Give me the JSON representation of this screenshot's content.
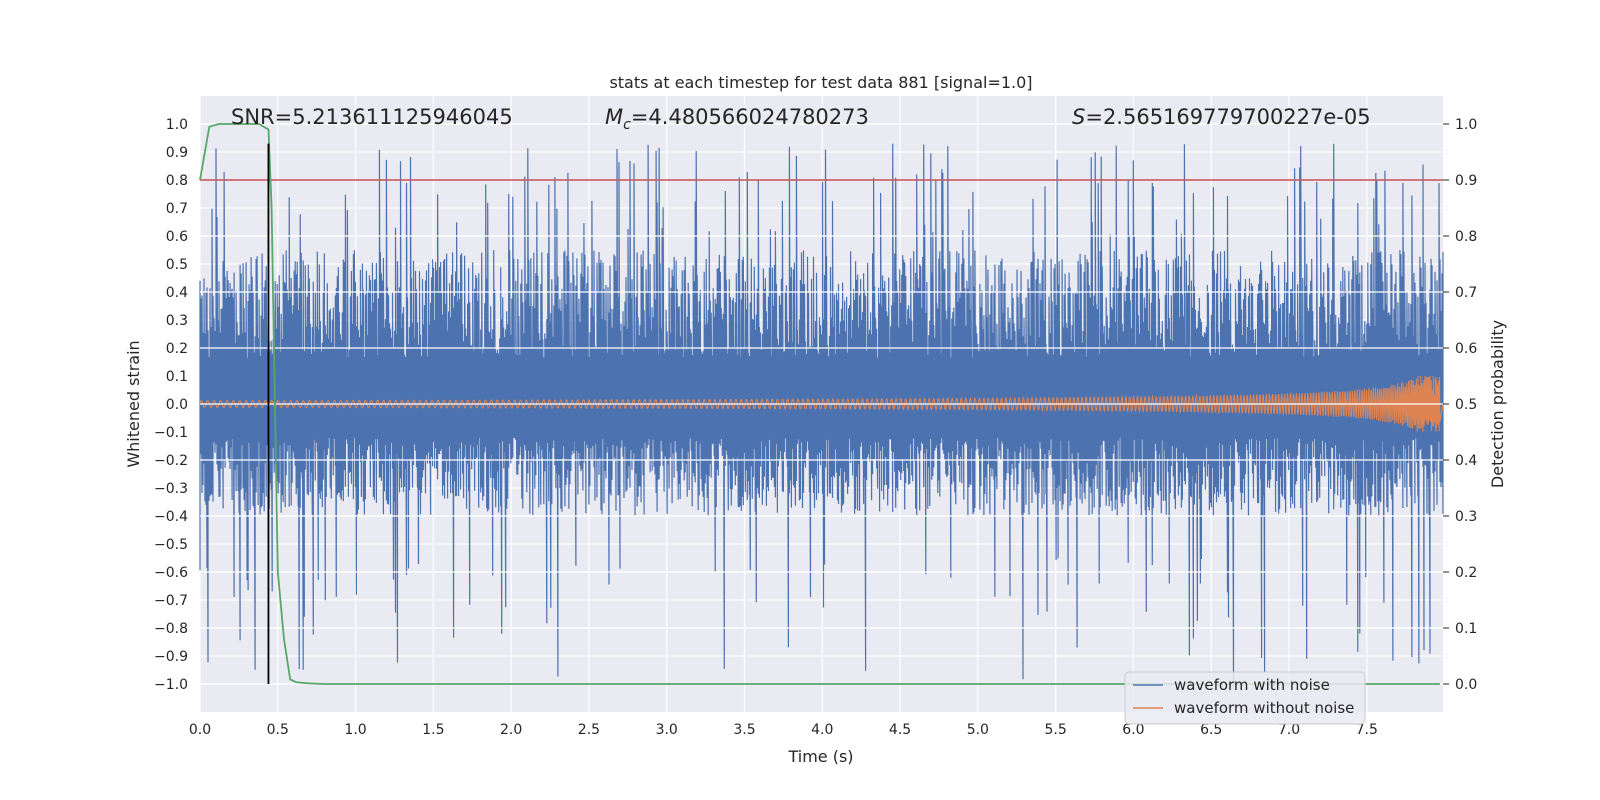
{
  "chart_data": {
    "type": "line",
    "title": "stats at each timestep for test data 881 [signal=1.0]",
    "xlabel": "Time (s)",
    "ylabel": "Whitened strain",
    "y2label": "Detection probability",
    "xlim": [
      0.0,
      7.99
    ],
    "ylim": [
      -1.1,
      1.1
    ],
    "y2lim": [
      -0.05,
      1.05
    ],
    "xticks": [
      "0.0",
      "0.5",
      "1.0",
      "1.5",
      "2.0",
      "2.5",
      "3.0",
      "3.5",
      "4.0",
      "4.5",
      "5.0",
      "5.5",
      "6.0",
      "6.5",
      "7.0",
      "7.5"
    ],
    "xtick_values": [
      0.0,
      0.5,
      1.0,
      1.5,
      2.0,
      2.5,
      3.0,
      3.5,
      4.0,
      4.5,
      5.0,
      5.5,
      6.0,
      6.5,
      7.0,
      7.5
    ],
    "yticks": [
      "1.0",
      "0.9",
      "0.8",
      "0.7",
      "0.6",
      "0.5",
      "0.4",
      "0.3",
      "0.2",
      "0.1",
      "0.0",
      "−0.1",
      "−0.2",
      "−0.3",
      "−0.4",
      "−0.5",
      "−0.6",
      "−0.7",
      "−0.8",
      "−0.9",
      "−1.0"
    ],
    "ytick_values": [
      1.0,
      0.9,
      0.8,
      0.7,
      0.6,
      0.5,
      0.4,
      0.3,
      0.2,
      0.1,
      0.0,
      -0.1,
      -0.2,
      -0.3,
      -0.4,
      -0.5,
      -0.6,
      -0.7,
      -0.8,
      -0.9,
      -1.0
    ],
    "y2ticks": [
      "1.0",
      "0.9",
      "0.8",
      "0.7",
      "0.6",
      "0.5",
      "0.4",
      "0.3",
      "0.2",
      "0.1",
      "0.0"
    ],
    "y2tick_values": [
      1.0,
      0.9,
      0.8,
      0.7,
      0.6,
      0.5,
      0.4,
      0.3,
      0.2,
      0.1,
      0.0
    ],
    "annotations": {
      "snr": "SNR=5.213611125946045",
      "mc_symbol": "M",
      "mc_sub": "c",
      "mc_value": "=4.480566024780273",
      "s_symbol": "S",
      "s_value": "=2.565169779700227e-05"
    },
    "threshold": {
      "y2": 0.9,
      "color": "#c44e52"
    },
    "marker_line": {
      "x": 0.44,
      "ymin": -1.0,
      "ymax": 0.93,
      "color": "#000000"
    },
    "series": [
      {
        "name": "waveform with noise",
        "color": "#4c72b0",
        "style": "noise",
        "duration": 7.99,
        "band_top_approx": 0.55,
        "band_bottom_approx": -0.4,
        "peak_max": 0.93,
        "peak_min": -1.0
      },
      {
        "name": "waveform without noise",
        "color": "#dd8452",
        "style": "chirp",
        "duration": 7.97,
        "amp_start": 0.012,
        "amp_end": 0.1,
        "freq_start_hz": 24,
        "freq_end_hz": 120
      },
      {
        "name": "detection probability",
        "color": "#55a868",
        "axis": "right",
        "x": [
          0.0,
          0.06,
          0.12,
          0.2,
          0.3,
          0.38,
          0.44,
          0.46,
          0.5,
          0.54,
          0.58,
          0.62,
          0.7,
          0.8,
          1.0,
          2.0,
          4.0,
          6.0,
          7.97
        ],
        "y": [
          0.9,
          0.995,
          1.0,
          1.0,
          1.0,
          1.0,
          0.99,
          0.85,
          0.2,
          0.08,
          0.008,
          0.003,
          0.001,
          0.0,
          0.0,
          0.0,
          0.0,
          0.0,
          0.0
        ]
      }
    ],
    "legend": {
      "position": "lower-right",
      "entries": [
        {
          "label": "waveform with noise",
          "color": "#4c72b0"
        },
        {
          "label": "waveform without noise",
          "color": "#dd8452"
        }
      ]
    }
  }
}
